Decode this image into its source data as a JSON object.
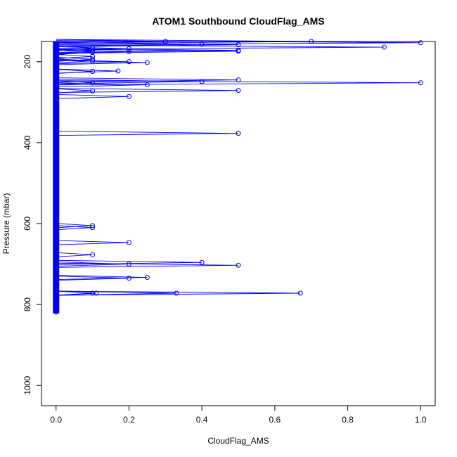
{
  "chart_data": {
    "type": "line",
    "title": "ATOM1 Southbound CloudFlag_AMS",
    "xlabel": "CloudFlag_AMS",
    "ylabel": "Pressure (mbar)",
    "xlim": [
      -0.04,
      1.04
    ],
    "ylim": [
      1050,
      150
    ],
    "y_reversed": true,
    "x_ticks": [
      0.0,
      0.2,
      0.4,
      0.6,
      0.8,
      1.0
    ],
    "x_tick_labels": [
      "0.0",
      "0.2",
      "0.4",
      "0.6",
      "0.8",
      "1.0"
    ],
    "y_ticks": [
      200,
      400,
      600,
      800,
      1000
    ],
    "y_tick_labels": [
      "200",
      "400",
      "600",
      "800",
      "1000"
    ],
    "grid": false,
    "legend": "none",
    "series_color": "#0000ff",
    "zero_band_pressure_range": [
      150,
      822
    ],
    "nonzero_points": [
      {
        "x": 0.3,
        "y": 150
      },
      {
        "x": 0.7,
        "y": 150
      },
      {
        "x": 1.0,
        "y": 153
      },
      {
        "x": 0.4,
        "y": 157
      },
      {
        "x": 0.5,
        "y": 158
      },
      {
        "x": 0.9,
        "y": 164
      },
      {
        "x": 0.1,
        "y": 166
      },
      {
        "x": 0.2,
        "y": 168
      },
      {
        "x": 0.5,
        "y": 172
      },
      {
        "x": 0.5,
        "y": 174
      },
      {
        "x": 0.1,
        "y": 174
      },
      {
        "x": 0.2,
        "y": 175
      },
      {
        "x": 0.1,
        "y": 177
      },
      {
        "x": 0.1,
        "y": 187
      },
      {
        "x": 0.1,
        "y": 194
      },
      {
        "x": 0.1,
        "y": 198
      },
      {
        "x": 0.2,
        "y": 200
      },
      {
        "x": 0.25,
        "y": 202
      },
      {
        "x": 0.1,
        "y": 224
      },
      {
        "x": 0.17,
        "y": 223
      },
      {
        "x": 0.5,
        "y": 245
      },
      {
        "x": 0.4,
        "y": 249
      },
      {
        "x": 0.1,
        "y": 252
      },
      {
        "x": 1.0,
        "y": 252
      },
      {
        "x": 0.25,
        "y": 257
      },
      {
        "x": 0.5,
        "y": 271
      },
      {
        "x": 0.1,
        "y": 272
      },
      {
        "x": 0.2,
        "y": 286
      },
      {
        "x": 0.5,
        "y": 377
      },
      {
        "x": 0.1,
        "y": 605
      },
      {
        "x": 0.1,
        "y": 610
      },
      {
        "x": 0.2,
        "y": 647
      },
      {
        "x": 0.1,
        "y": 677
      },
      {
        "x": 0.4,
        "y": 696
      },
      {
        "x": 0.2,
        "y": 700
      },
      {
        "x": 0.5,
        "y": 703
      },
      {
        "x": 0.25,
        "y": 733
      },
      {
        "x": 0.2,
        "y": 735
      },
      {
        "x": 0.1,
        "y": 772
      },
      {
        "x": 0.11,
        "y": 772
      },
      {
        "x": 0.33,
        "y": 772
      },
      {
        "x": 0.67,
        "y": 772
      }
    ]
  }
}
